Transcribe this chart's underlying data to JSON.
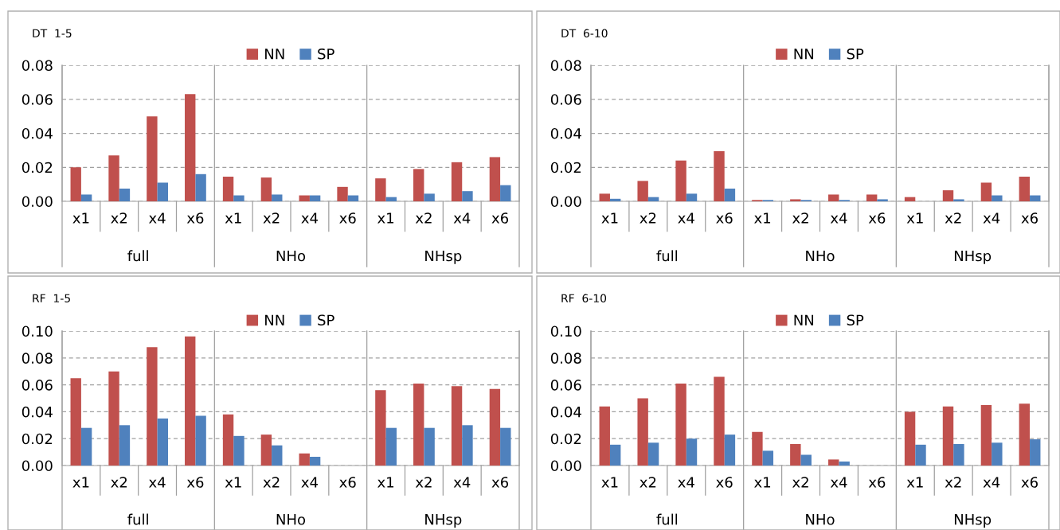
{
  "chart_data": [
    {
      "type": "bar",
      "title": "DT  1-5",
      "categories": [
        "x1",
        "x2",
        "x4",
        "x6",
        "x1",
        "x2",
        "x4",
        "x6",
        "x1",
        "x2",
        "x4",
        "x6"
      ],
      "annotations": [
        "full",
        "NHo",
        "NHsp"
      ],
      "ylim": [
        0,
        0.08
      ],
      "yticks": [
        {
          "value": 0,
          "label": "0.00"
        },
        {
          "value": 0.02,
          "label": "0.02"
        },
        {
          "value": 0.04,
          "label": "0.04"
        },
        {
          "value": 0.06,
          "label": "0.06"
        },
        {
          "value": 0.08,
          "label": "0.08"
        }
      ],
      "grid": "y",
      "legend": "top",
      "series": [
        {
          "name": "NN",
          "color": "#c0504d",
          "values": [
            0.02,
            0.027,
            0.05,
            0.063,
            0.0145,
            0.014,
            0.0035,
            0.0085,
            0.0135,
            0.019,
            0.023,
            0.026
          ]
        },
        {
          "name": "SP",
          "color": "#4f81bd",
          "values": [
            0.004,
            0.0075,
            0.011,
            0.016,
            0.0035,
            0.004,
            0.0035,
            0.0035,
            0.0025,
            0.0045,
            0.006,
            0.0095
          ]
        }
      ]
    },
    {
      "type": "bar",
      "title": "DT  6-10",
      "categories": [
        "x1",
        "x2",
        "x4",
        "x6",
        "x1",
        "x2",
        "x4",
        "x6",
        "x1",
        "x2",
        "x4",
        "x6"
      ],
      "annotations": [
        "full",
        "NHo",
        "NHsp"
      ],
      "ylim": [
        0,
        0.08
      ],
      "yticks": [
        {
          "value": 0,
          "label": "0.00"
        },
        {
          "value": 0.02,
          "label": "0.02"
        },
        {
          "value": 0.04,
          "label": "0.04"
        },
        {
          "value": 0.06,
          "label": "0.06"
        },
        {
          "value": 0.08,
          "label": "0.08"
        }
      ],
      "grid": "y",
      "legend": "top",
      "series": [
        {
          "name": "NN",
          "color": "#c0504d",
          "values": [
            0.0045,
            0.012,
            0.024,
            0.0295,
            0.0008,
            0.0012,
            0.004,
            0.004,
            0.0025,
            0.0065,
            0.011,
            0.0145
          ]
        },
        {
          "name": "SP",
          "color": "#4f81bd",
          "values": [
            0.0015,
            0.0025,
            0.0045,
            0.0075,
            0.0008,
            0.0008,
            0.0008,
            0.0012,
            0.0,
            0.0012,
            0.0035,
            0.0035
          ]
        }
      ]
    },
    {
      "type": "bar",
      "title": "RF  1-5",
      "categories": [
        "x1",
        "x2",
        "x4",
        "x6",
        "x1",
        "x2",
        "x4",
        "x6",
        "x1",
        "x2",
        "x4",
        "x6"
      ],
      "annotations": [
        "full",
        "NHo",
        "NHsp"
      ],
      "ylim": [
        0,
        0.1
      ],
      "yticks": [
        {
          "value": 0,
          "label": "0.00"
        },
        {
          "value": 0.02,
          "label": "0.02"
        },
        {
          "value": 0.04,
          "label": "0.04"
        },
        {
          "value": 0.06,
          "label": "0.06"
        },
        {
          "value": 0.08,
          "label": "0.08"
        },
        {
          "value": 0.1,
          "label": "0.10"
        }
      ],
      "grid": "y",
      "legend": "top",
      "series": [
        {
          "name": "NN",
          "color": "#c0504d",
          "values": [
            0.065,
            0.07,
            0.088,
            0.096,
            0.038,
            0.023,
            0.009,
            null,
            0.056,
            0.061,
            0.059,
            0.057
          ]
        },
        {
          "name": "SP",
          "color": "#4f81bd",
          "values": [
            0.028,
            0.03,
            0.035,
            0.037,
            0.022,
            0.015,
            0.0065,
            null,
            0.028,
            0.028,
            0.03,
            0.028
          ]
        }
      ]
    },
    {
      "type": "bar",
      "title": "RF  6-10",
      "categories": [
        "x1",
        "x2",
        "x4",
        "x6",
        "x1",
        "x2",
        "x4",
        "x6",
        "x1",
        "x2",
        "x4",
        "x6"
      ],
      "annotations": [
        "full",
        "NHo",
        "NHsp"
      ],
      "ylim": [
        0,
        0.1
      ],
      "yticks": [
        {
          "value": 0,
          "label": "0.00"
        },
        {
          "value": 0.02,
          "label": "0.02"
        },
        {
          "value": 0.04,
          "label": "0.04"
        },
        {
          "value": 0.06,
          "label": "0.06"
        },
        {
          "value": 0.08,
          "label": "0.08"
        },
        {
          "value": 0.1,
          "label": "0.10"
        }
      ],
      "grid": "y",
      "legend": "top",
      "series": [
        {
          "name": "NN",
          "color": "#c0504d",
          "values": [
            0.044,
            0.05,
            0.061,
            0.066,
            0.025,
            0.016,
            0.0045,
            null,
            0.04,
            0.044,
            0.045,
            0.046
          ]
        },
        {
          "name": "SP",
          "color": "#4f81bd",
          "values": [
            0.0155,
            0.017,
            0.02,
            0.023,
            0.011,
            0.008,
            0.003,
            null,
            0.0155,
            0.016,
            0.017,
            0.0195
          ]
        }
      ]
    }
  ]
}
